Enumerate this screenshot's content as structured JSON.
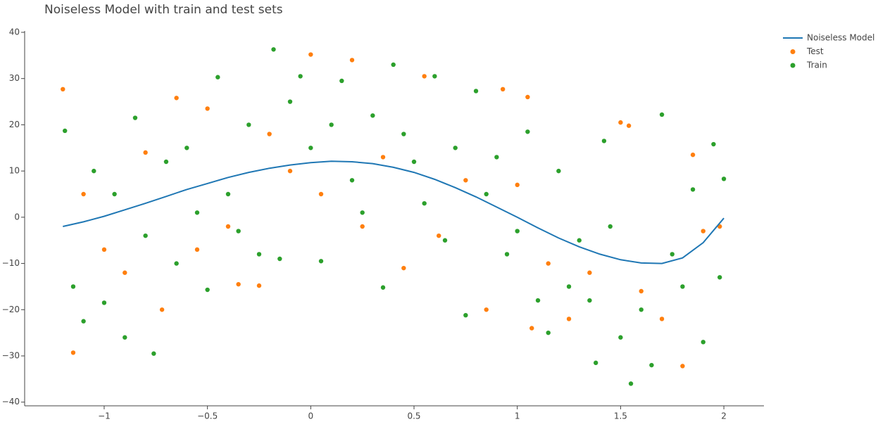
{
  "chart_data": {
    "type": "scatter",
    "title": "Noiseless Model with train and test sets",
    "xlim": [
      -1.385,
      2.194
    ],
    "ylim": [
      -40.8,
      40.3
    ],
    "xticks": [
      {
        "value": -1,
        "label": "−1"
      },
      {
        "value": -0.5,
        "label": "−0.5"
      },
      0,
      0.5,
      1,
      1.5,
      2
    ],
    "yticks": [
      {
        "value": -40,
        "label": "−40"
      },
      {
        "value": -30,
        "label": "−30"
      },
      {
        "value": -20,
        "label": "−20"
      },
      {
        "value": -10,
        "label": "−10"
      },
      0,
      10,
      20,
      30,
      40
    ],
    "series": [
      {
        "name": "Noiseless Model",
        "mode": "lines",
        "color": "#1f77b4",
        "x": [
          -1.2,
          -1.1,
          -1.0,
          -0.9,
          -0.8,
          -0.7,
          -0.6,
          -0.5,
          -0.4,
          -0.3,
          -0.2,
          -0.1,
          0,
          0.1,
          0.2,
          0.3,
          0.4,
          0.5,
          0.6,
          0.7,
          0.8,
          0.9,
          1.0,
          1.1,
          1.2,
          1.3,
          1.4,
          1.5,
          1.6,
          1.7,
          1.8,
          1.9,
          2.0
        ],
        "values": [
          -2,
          -1,
          0.2,
          1.6,
          3,
          4.5,
          6,
          7.3,
          8.6,
          9.7,
          10.6,
          11.3,
          11.8,
          12.1,
          12,
          11.6,
          10.8,
          9.7,
          8.2,
          6.4,
          4.4,
          2.2,
          0,
          -2.3,
          -4.5,
          -6.4,
          -8,
          -9.2,
          -9.9,
          -10,
          -8.8,
          -5.5,
          -0.2
        ]
      },
      {
        "name": "Test",
        "mode": "markers",
        "color": "#ff7f0e",
        "x": [
          -1.2,
          -1.15,
          -1.1,
          -1.0,
          -0.9,
          -0.8,
          -0.72,
          -0.65,
          -0.55,
          -0.5,
          -0.4,
          -0.35,
          -0.25,
          -0.2,
          -0.1,
          0,
          0.05,
          0.2,
          0.25,
          0.35,
          0.45,
          0.55,
          0.62,
          0.75,
          0.85,
          0.93,
          1.0,
          1.05,
          1.07,
          1.15,
          1.25,
          1.35,
          1.5,
          1.54,
          1.6,
          1.7,
          1.8,
          1.85,
          1.9,
          1.98
        ],
        "values": [
          27.7,
          -29.3,
          5,
          -7,
          -12,
          14,
          -20,
          25.8,
          -7,
          23.5,
          -2,
          -14.5,
          -14.8,
          18,
          10,
          35.2,
          5,
          34,
          -2,
          13,
          -11,
          30.5,
          -4,
          8,
          -20,
          27.7,
          7,
          26,
          -24,
          -10,
          -22,
          -12,
          20.5,
          19.8,
          -16,
          -22,
          -32.2,
          13.5,
          -3,
          -2
        ]
      },
      {
        "name": "Train",
        "mode": "markers",
        "color": "#2ca02c",
        "x": [
          -1.19,
          -1.15,
          -1.1,
          -1.05,
          -1.0,
          -0.95,
          -0.9,
          -0.85,
          -0.8,
          -0.76,
          -0.7,
          -0.65,
          -0.6,
          -0.55,
          -0.5,
          -0.45,
          -0.4,
          -0.35,
          -0.3,
          -0.25,
          -0.18,
          -0.15,
          -0.1,
          -0.05,
          0,
          0.05,
          0.1,
          0.15,
          0.2,
          0.25,
          0.3,
          0.35,
          0.4,
          0.45,
          0.5,
          0.55,
          0.6,
          0.65,
          0.7,
          0.75,
          0.8,
          0.85,
          0.9,
          0.95,
          1.0,
          1.05,
          1.1,
          1.15,
          1.2,
          1.25,
          1.3,
          1.35,
          1.38,
          1.42,
          1.45,
          1.5,
          1.55,
          1.6,
          1.65,
          1.7,
          1.75,
          1.8,
          1.85,
          1.9,
          1.95,
          2.0,
          1.98
        ],
        "values": [
          18.7,
          -15,
          -22.5,
          10,
          -18.5,
          5,
          -26,
          21.5,
          -4,
          -29.5,
          12,
          -10,
          15,
          1,
          -15.7,
          30.3,
          5,
          -3,
          20,
          -8,
          36.3,
          -9,
          25,
          30.5,
          15,
          -9.5,
          20,
          29.5,
          8,
          1,
          22,
          -15.2,
          33,
          18,
          12,
          3,
          30.5,
          -5,
          15,
          -21.2,
          27.3,
          5,
          13,
          -8,
          -3,
          18.5,
          -18,
          -25,
          10,
          -15,
          -5,
          -18,
          -31.5,
          16.5,
          -2,
          -26,
          -36,
          -20,
          -32,
          22.2,
          -8,
          -15,
          6,
          -27,
          15.8,
          8.3,
          -13
        ]
      }
    ]
  }
}
